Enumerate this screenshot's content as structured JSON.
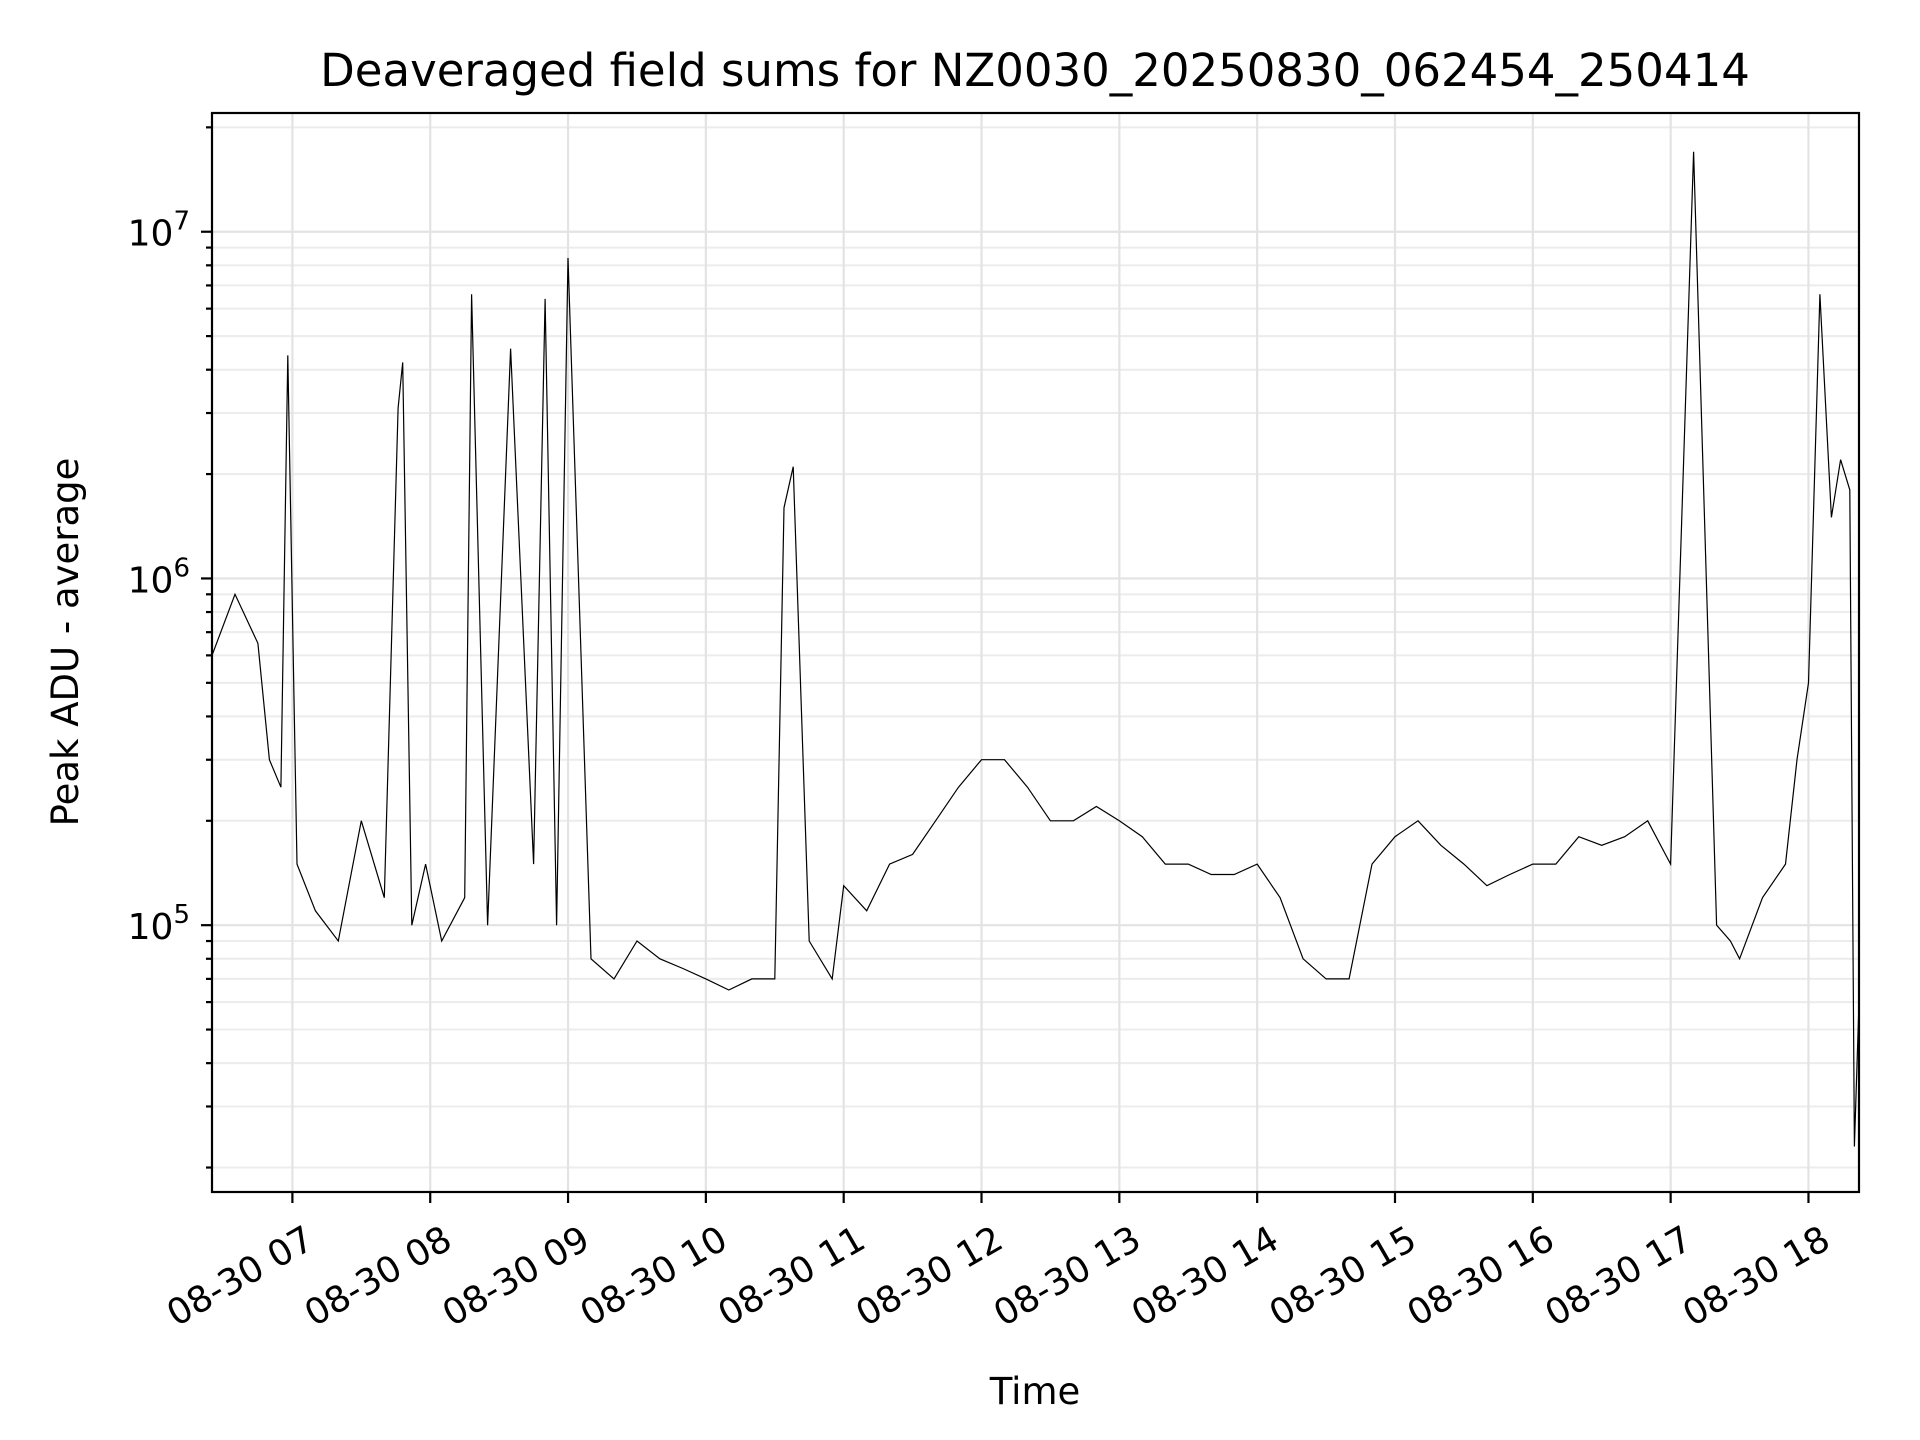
{
  "chart_data": {
    "type": "line",
    "title": "Deaveraged field sums for NZ0030_20250830_062454_250414",
    "xlabel": "Time",
    "ylabel": "Peak ADU - average",
    "xscale": "time",
    "yscale": "log",
    "xlim": [
      "08-30 06:25",
      "08-30 18:22"
    ],
    "ylim": [
      17000,
      22000000
    ],
    "xticks": [
      {
        "label": "08-30 07",
        "value": 7
      },
      {
        "label": "08-30 08",
        "value": 8
      },
      {
        "label": "08-30 09",
        "value": 9
      },
      {
        "label": "08-30 10",
        "value": 10
      },
      {
        "label": "08-30 11",
        "value": 11
      },
      {
        "label": "08-30 12",
        "value": 12
      },
      {
        "label": "08-30 13",
        "value": 13
      },
      {
        "label": "08-30 14",
        "value": 14
      },
      {
        "label": "08-30 15",
        "value": 15
      },
      {
        "label": "08-30 16",
        "value": 16
      },
      {
        "label": "08-30 17",
        "value": 17
      },
      {
        "label": "08-30 18",
        "value": 18
      }
    ],
    "yticks": [
      {
        "base": "10",
        "exp": "5",
        "value": 100000
      },
      {
        "base": "10",
        "exp": "6",
        "value": 1000000
      },
      {
        "base": "10",
        "exp": "7",
        "value": 10000000
      }
    ],
    "grid": true,
    "legend": "none",
    "series": [
      {
        "color": "#000000",
        "x": [
          "06:25",
          "06:35",
          "06:45",
          "06:50",
          "06:55",
          "06:58",
          "07:02",
          "07:10",
          "07:20",
          "07:30",
          "07:40",
          "07:46",
          "07:48",
          "07:52",
          "07:58",
          "08:05",
          "08:15",
          "08:18",
          "08:25",
          "08:35",
          "08:45",
          "08:50",
          "08:55",
          "09:00",
          "09:10",
          "09:20",
          "09:30",
          "09:40",
          "09:50",
          "10:00",
          "10:10",
          "10:20",
          "10:30",
          "10:34",
          "10:38",
          "10:45",
          "10:55",
          "11:00",
          "11:10",
          "11:20",
          "11:30",
          "11:40",
          "11:50",
          "12:00",
          "12:10",
          "12:20",
          "12:30",
          "12:40",
          "12:50",
          "13:00",
          "13:10",
          "13:20",
          "13:30",
          "13:40",
          "13:50",
          "14:00",
          "14:10",
          "14:20",
          "14:30",
          "14:40",
          "14:50",
          "15:00",
          "15:10",
          "15:20",
          "15:30",
          "15:40",
          "15:50",
          "16:00",
          "16:10",
          "16:20",
          "16:30",
          "16:40",
          "16:50",
          "17:00",
          "17:10",
          "17:20",
          "17:26",
          "17:30",
          "17:40",
          "17:50",
          "17:55",
          "18:00",
          "18:05",
          "18:10",
          "18:14",
          "18:18",
          "18:20",
          "18:22"
        ],
        "y": [
          600000,
          900000,
          650000,
          300000,
          250000,
          4400000,
          150000,
          110000,
          90000,
          200000,
          120000,
          3100000,
          4200000,
          100000,
          150000,
          90000,
          120000,
          6600000,
          100000,
          4600000,
          150000,
          6400000,
          100000,
          8400000,
          80000,
          70000,
          90000,
          80000,
          75000,
          70000,
          65000,
          70000,
          70000,
          1600000,
          2100000,
          90000,
          70000,
          130000,
          110000,
          150000,
          160000,
          200000,
          250000,
          300000,
          300000,
          250000,
          200000,
          200000,
          220000,
          200000,
          180000,
          150000,
          150000,
          140000,
          140000,
          150000,
          120000,
          80000,
          70000,
          70000,
          150000,
          180000,
          200000,
          170000,
          150000,
          130000,
          140000,
          150000,
          150000,
          180000,
          170000,
          180000,
          200000,
          150000,
          17000000,
          100000,
          90000,
          80000,
          120000,
          150000,
          300000,
          500000,
          6600000,
          1500000,
          2200000,
          1800000,
          23000,
          60000
        ]
      }
    ]
  }
}
